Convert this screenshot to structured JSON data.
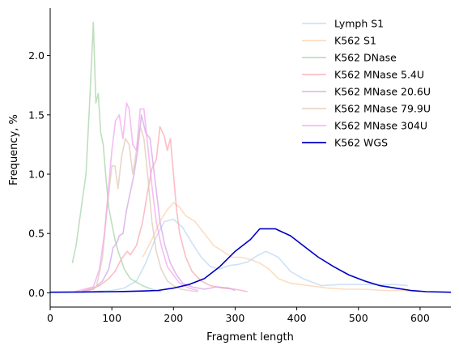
{
  "chart_data": {
    "type": "line",
    "title": "",
    "xlabel": "Fragment length",
    "ylabel": "Frequency, %",
    "xlim": [
      0,
      650
    ],
    "ylim": [
      -0.12,
      2.4
    ],
    "xticks": [
      0,
      100,
      200,
      300,
      400,
      500,
      600
    ],
    "xtick_labels": [
      "0",
      "100",
      "200",
      "300",
      "400",
      "500",
      "600"
    ],
    "yticks": [
      0.0,
      0.5,
      1.0,
      1.5,
      2.0
    ],
    "ytick_labels": [
      "0.0",
      "0.5",
      "1.0",
      "1.5",
      "2.0"
    ],
    "grid": false,
    "legend_position": "top-right",
    "series": [
      {
        "name": "Lymph S1",
        "color": "#b8d6f2",
        "alpha": 0.7,
        "x": [
          70,
          100,
          120,
          140,
          155,
          170,
          185,
          200,
          215,
          230,
          245,
          260,
          275,
          290,
          305,
          320,
          335,
          350,
          370,
          390,
          410,
          440,
          470,
          500,
          530,
          560,
          580
        ],
        "y": [
          0.01,
          0.02,
          0.04,
          0.1,
          0.25,
          0.45,
          0.6,
          0.62,
          0.55,
          0.42,
          0.3,
          0.22,
          0.2,
          0.23,
          0.24,
          0.26,
          0.31,
          0.35,
          0.3,
          0.18,
          0.12,
          0.06,
          0.07,
          0.07,
          0.07,
          0.07,
          0.06
        ]
      },
      {
        "name": "K562 S1",
        "color": "#fccfa6",
        "alpha": 0.7,
        "x": [
          150,
          165,
          180,
          190,
          200,
          210,
          220,
          235,
          250,
          265,
          280,
          295,
          310,
          325,
          340,
          355,
          370,
          390,
          420,
          450,
          480,
          510,
          540,
          570,
          600
        ],
        "y": [
          0.3,
          0.45,
          0.62,
          0.7,
          0.76,
          0.72,
          0.65,
          0.6,
          0.5,
          0.4,
          0.35,
          0.3,
          0.3,
          0.28,
          0.25,
          0.2,
          0.12,
          0.08,
          0.06,
          0.04,
          0.03,
          0.03,
          0.02,
          0.02,
          0.01
        ]
      },
      {
        "name": "K562 DNase",
        "color": "#a8d4a8",
        "alpha": 0.75,
        "x": [
          36,
          42,
          50,
          58,
          64,
          70,
          74,
          78,
          82,
          86,
          90,
          95,
          100,
          105,
          110,
          115,
          120,
          130,
          140,
          150,
          160,
          170,
          180
        ],
        "y": [
          0.25,
          0.4,
          0.7,
          1.0,
          1.6,
          2.28,
          1.6,
          1.68,
          1.35,
          1.25,
          1.0,
          0.72,
          0.58,
          0.45,
          0.35,
          0.28,
          0.2,
          0.12,
          0.09,
          0.06,
          0.04,
          0.02,
          0.01
        ]
      },
      {
        "name": "K562 MNase 5.4U",
        "color": "#f9a2ac",
        "alpha": 0.7,
        "x": [
          50,
          80,
          95,
          105,
          115,
          125,
          130,
          140,
          150,
          158,
          165,
          172,
          178,
          185,
          190,
          195,
          200,
          205,
          210,
          220,
          230,
          245,
          260,
          280,
          300,
          320
        ],
        "y": [
          0.01,
          0.06,
          0.12,
          0.18,
          0.28,
          0.35,
          0.32,
          0.4,
          0.6,
          0.85,
          1.05,
          1.12,
          1.4,
          1.32,
          1.2,
          1.3,
          1.0,
          0.7,
          0.5,
          0.3,
          0.18,
          0.1,
          0.06,
          0.04,
          0.03,
          0.01
        ]
      },
      {
        "name": "K562 MNase 20.6U",
        "color": "#d4a6e6",
        "alpha": 0.75,
        "x": [
          50,
          70,
          85,
          95,
          102,
          108,
          112,
          118,
          124,
          130,
          136,
          142,
          148,
          155,
          162,
          170,
          178,
          186,
          195,
          205,
          215,
          230,
          250,
          270,
          290,
          300
        ],
        "y": [
          0.01,
          0.03,
          0.1,
          0.2,
          0.38,
          0.42,
          0.48,
          0.5,
          0.7,
          0.85,
          1.0,
          1.2,
          1.5,
          1.35,
          1.3,
          0.95,
          0.6,
          0.4,
          0.25,
          0.15,
          0.08,
          0.05,
          0.03,
          0.05,
          0.04,
          0.02
        ]
      },
      {
        "name": "K562 MNase 79.9U",
        "color": "#dfc9b4",
        "alpha": 0.75,
        "x": [
          60,
          75,
          85,
          92,
          100,
          105,
          110,
          116,
          122,
          128,
          134,
          140,
          146,
          152,
          158,
          165,
          172,
          180,
          190,
          200,
          212,
          225,
          240
        ],
        "y": [
          0.01,
          0.05,
          0.3,
          0.7,
          1.07,
          1.07,
          0.88,
          1.15,
          1.3,
          1.25,
          1.0,
          1.2,
          1.4,
          1.3,
          1.0,
          0.6,
          0.35,
          0.2,
          0.1,
          0.06,
          0.03,
          0.02,
          0.01
        ]
      },
      {
        "name": "K562 MNase 304U",
        "color": "#f3a6f0",
        "alpha": 0.75,
        "x": [
          40,
          70,
          80,
          88,
          95,
          100,
          106,
          112,
          118,
          124,
          128,
          134,
          140,
          146,
          152,
          158,
          165,
          172,
          180,
          190,
          200,
          210,
          225,
          240
        ],
        "y": [
          0.01,
          0.05,
          0.2,
          0.5,
          0.9,
          1.2,
          1.45,
          1.5,
          1.3,
          1.6,
          1.55,
          1.25,
          1.2,
          1.55,
          1.55,
          1.25,
          0.9,
          0.6,
          0.4,
          0.22,
          0.15,
          0.08,
          0.04,
          0.02
        ]
      },
      {
        "name": "K562 WGS",
        "color": "#0000c0",
        "alpha": 1.0,
        "x": [
          0,
          50,
          100,
          125,
          150,
          175,
          200,
          225,
          250,
          275,
          300,
          325,
          340,
          365,
          390,
          410,
          435,
          460,
          485,
          510,
          535,
          560,
          585,
          610,
          650
        ],
        "y": [
          0.005,
          0.007,
          0.01,
          0.012,
          0.015,
          0.02,
          0.04,
          0.07,
          0.12,
          0.22,
          0.35,
          0.45,
          0.54,
          0.54,
          0.48,
          0.4,
          0.3,
          0.22,
          0.15,
          0.1,
          0.06,
          0.04,
          0.02,
          0.01,
          0.005
        ]
      }
    ]
  }
}
